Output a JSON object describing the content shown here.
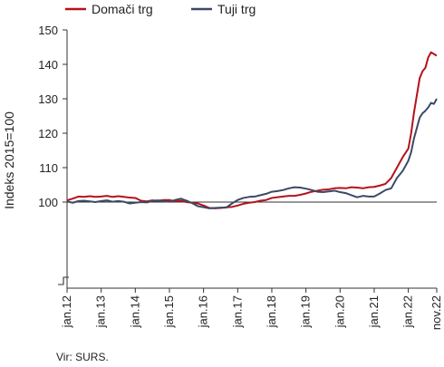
{
  "chart_data": {
    "type": "line",
    "title": "",
    "xlabel": "",
    "ylabel": "Indeks 2015=100",
    "ylim": [
      75,
      150
    ],
    "yticks": [
      100,
      110,
      120,
      130,
      140,
      150
    ],
    "reference_line": 100,
    "x_tick_labels": [
      "jan.12",
      "jan.13",
      "jan.14",
      "jan.15",
      "jan.16",
      "jan.17",
      "jan.18",
      "jan.19",
      "jan.20",
      "jan.21",
      "jan.22",
      "nov.22"
    ],
    "x_tick_months": [
      0,
      12,
      24,
      36,
      48,
      60,
      72,
      84,
      96,
      108,
      120,
      130
    ],
    "x_start": "jan.12",
    "legend_position": "top-left",
    "grid": false,
    "series": [
      {
        "name": "Domači trg",
        "color": "#b5121b",
        "points": [
          [
            0,
            100.5
          ],
          [
            2,
            101.0
          ],
          [
            4,
            101.6
          ],
          [
            6,
            101.5
          ],
          [
            8,
            101.7
          ],
          [
            10,
            101.5
          ],
          [
            12,
            101.6
          ],
          [
            14,
            101.8
          ],
          [
            16,
            101.5
          ],
          [
            18,
            101.7
          ],
          [
            20,
            101.5
          ],
          [
            22,
            101.3
          ],
          [
            24,
            101.2
          ],
          [
            26,
            100.4
          ],
          [
            28,
            100.2
          ],
          [
            30,
            100.5
          ],
          [
            32,
            100.4
          ],
          [
            34,
            100.6
          ],
          [
            36,
            100.6
          ],
          [
            38,
            100.2
          ],
          [
            40,
            100.4
          ],
          [
            42,
            100.0
          ],
          [
            44,
            99.8
          ],
          [
            46,
            99.6
          ],
          [
            48,
            99.0
          ],
          [
            50,
            98.3
          ],
          [
            52,
            98.2
          ],
          [
            54,
            98.3
          ],
          [
            56,
            98.5
          ],
          [
            58,
            98.6
          ],
          [
            60,
            99.0
          ],
          [
            62,
            99.5
          ],
          [
            64,
            99.8
          ],
          [
            66,
            100.0
          ],
          [
            68,
            100.4
          ],
          [
            70,
            100.6
          ],
          [
            72,
            101.2
          ],
          [
            74,
            101.4
          ],
          [
            76,
            101.6
          ],
          [
            78,
            101.8
          ],
          [
            80,
            101.8
          ],
          [
            82,
            102.1
          ],
          [
            84,
            102.5
          ],
          [
            86,
            103.0
          ],
          [
            88,
            103.3
          ],
          [
            90,
            103.6
          ],
          [
            92,
            103.7
          ],
          [
            94,
            104.0
          ],
          [
            96,
            104.1
          ],
          [
            98,
            104.0
          ],
          [
            100,
            104.3
          ],
          [
            102,
            104.2
          ],
          [
            104,
            104.0
          ],
          [
            106,
            104.3
          ],
          [
            108,
            104.4
          ],
          [
            110,
            104.8
          ],
          [
            112,
            105.3
          ],
          [
            114,
            107.0
          ],
          [
            116,
            110.0
          ],
          [
            118,
            113.0
          ],
          [
            120,
            115.5
          ],
          [
            121,
            120.0
          ],
          [
            122,
            126.0
          ],
          [
            123,
            131.0
          ],
          [
            124,
            136.0
          ],
          [
            125,
            138.0
          ],
          [
            126,
            139.0
          ],
          [
            127,
            142.0
          ],
          [
            128,
            143.5
          ],
          [
            129,
            143.0
          ],
          [
            130,
            142.5
          ]
        ]
      },
      {
        "name": "Tuji trg",
        "color": "#3a4a66",
        "points": [
          [
            0,
            100.2
          ],
          [
            2,
            99.8
          ],
          [
            4,
            100.3
          ],
          [
            6,
            100.4
          ],
          [
            8,
            100.2
          ],
          [
            10,
            100.0
          ],
          [
            12,
            100.3
          ],
          [
            14,
            100.5
          ],
          [
            16,
            100.1
          ],
          [
            18,
            100.3
          ],
          [
            20,
            100.1
          ],
          [
            22,
            99.6
          ],
          [
            24,
            99.8
          ],
          [
            26,
            100.0
          ],
          [
            28,
            99.9
          ],
          [
            30,
            100.3
          ],
          [
            32,
            100.5
          ],
          [
            34,
            100.2
          ],
          [
            36,
            100.1
          ],
          [
            38,
            100.6
          ],
          [
            40,
            101.0
          ],
          [
            42,
            100.4
          ],
          [
            44,
            99.7
          ],
          [
            46,
            98.8
          ],
          [
            48,
            98.5
          ],
          [
            50,
            98.2
          ],
          [
            52,
            98.3
          ],
          [
            54,
            98.4
          ],
          [
            56,
            98.4
          ],
          [
            58,
            99.6
          ],
          [
            60,
            100.6
          ],
          [
            62,
            101.2
          ],
          [
            64,
            101.5
          ],
          [
            66,
            101.6
          ],
          [
            68,
            102.0
          ],
          [
            70,
            102.4
          ],
          [
            72,
            103.0
          ],
          [
            74,
            103.2
          ],
          [
            76,
            103.5
          ],
          [
            78,
            104.0
          ],
          [
            80,
            104.3
          ],
          [
            82,
            104.2
          ],
          [
            84,
            103.9
          ],
          [
            86,
            103.5
          ],
          [
            88,
            103.0
          ],
          [
            90,
            102.9
          ],
          [
            92,
            103.1
          ],
          [
            94,
            103.3
          ],
          [
            96,
            102.9
          ],
          [
            98,
            102.6
          ],
          [
            100,
            102.0
          ],
          [
            102,
            101.4
          ],
          [
            104,
            101.8
          ],
          [
            106,
            101.6
          ],
          [
            108,
            101.6
          ],
          [
            110,
            102.5
          ],
          [
            112,
            103.5
          ],
          [
            114,
            104.0
          ],
          [
            116,
            107.0
          ],
          [
            118,
            109.0
          ],
          [
            120,
            112.0
          ],
          [
            121,
            114.5
          ],
          [
            122,
            118.5
          ],
          [
            123,
            121.5
          ],
          [
            124,
            124.5
          ],
          [
            125,
            125.8
          ],
          [
            126,
            126.5
          ],
          [
            127,
            127.5
          ],
          [
            128,
            128.8
          ],
          [
            129,
            128.5
          ],
          [
            130,
            130.0
          ]
        ]
      }
    ]
  },
  "source_note": "Vir: SURS."
}
